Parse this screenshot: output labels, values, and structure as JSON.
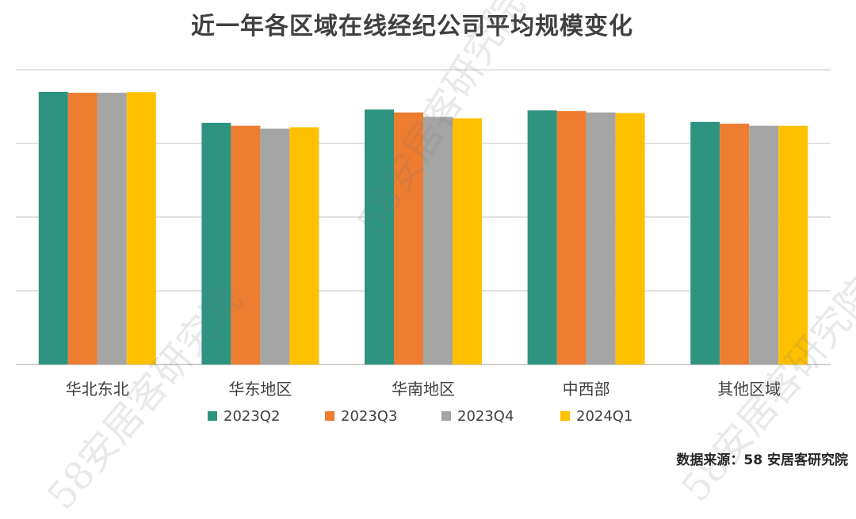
{
  "title": "近一年各区域在线经纪公司平均规模变化",
  "source": "数据来源：58 安居客研究院",
  "watermarks": [
    "58安居客研究院",
    "58安居客研究院",
    "58安居客研究院"
  ],
  "colors": {
    "2023Q2": "#2e9480",
    "2023Q3": "#ed7d31",
    "2023Q4": "#a5a5a5",
    "2024Q1": "#ffc000",
    "grid": "#d9d9d9",
    "text": "#404040"
  },
  "chart_data": {
    "type": "bar",
    "title": "近一年各区域在线经纪公司平均规模变化",
    "categories": [
      "华北东北",
      "华东地区",
      "华南地区",
      "中西部",
      "其他区域"
    ],
    "series": [
      {
        "name": "2023Q2",
        "values": [
          92.5,
          82.0,
          86.5,
          86.2,
          82.3
        ]
      },
      {
        "name": "2023Q3",
        "values": [
          92.2,
          81.0,
          85.5,
          86.0,
          81.7
        ]
      },
      {
        "name": "2023Q4",
        "values": [
          92.2,
          80.0,
          84.0,
          85.5,
          81.0
        ]
      },
      {
        "name": "2024Q1",
        "values": [
          92.4,
          80.5,
          83.5,
          85.3,
          81.0
        ]
      }
    ],
    "ylim": [
      0,
      100
    ],
    "gridlines": true,
    "y_tick_labels_shown": false,
    "legend_position": "bottom"
  }
}
